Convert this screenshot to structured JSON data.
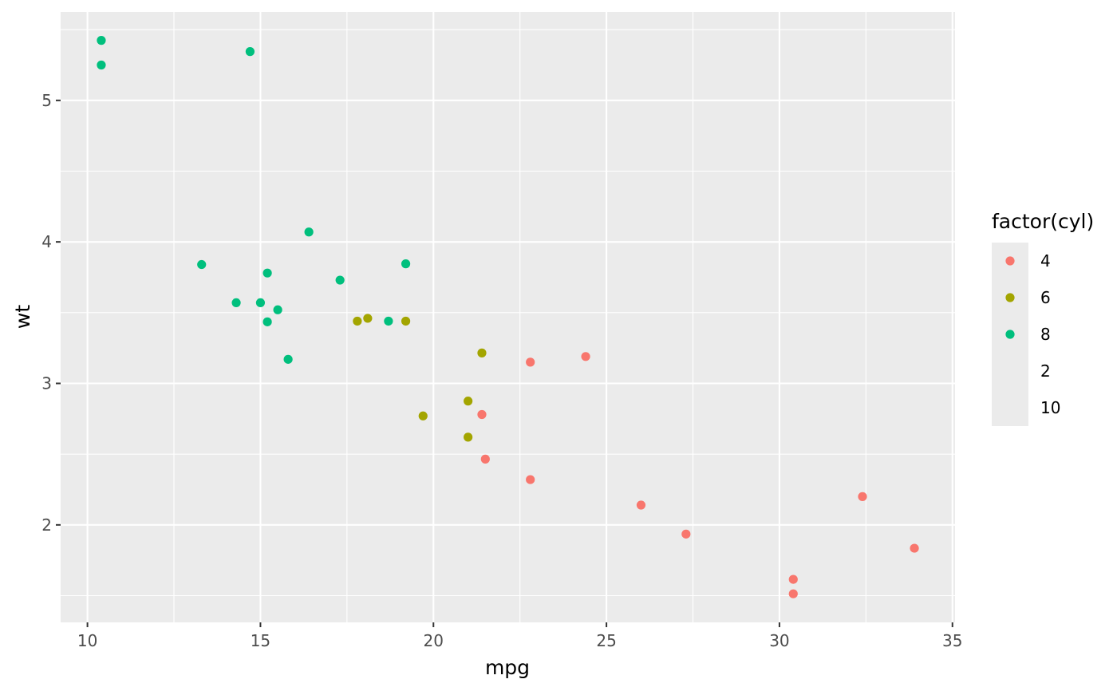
{
  "chart_data": {
    "type": "scatter",
    "title": "",
    "xlabel": "mpg",
    "ylabel": "wt",
    "xlim": [
      9.225,
      35.075
    ],
    "ylim": [
      1.31105,
      5.62495
    ],
    "x_ticks": [
      10,
      15,
      20,
      25,
      30,
      35
    ],
    "y_ticks": [
      2,
      3,
      4,
      5
    ],
    "grid": true,
    "background": "#ebebeb",
    "legend": {
      "title": "factor(cyl)",
      "position": "right",
      "entries": [
        {
          "label": "4",
          "color": "#F8766D",
          "has_point": true
        },
        {
          "label": "6",
          "color": "#A3A500",
          "has_point": true
        },
        {
          "label": "8",
          "color": "#00BF7D",
          "has_point": true
        },
        {
          "label": "2",
          "color": "",
          "has_point": false
        },
        {
          "label": "10",
          "color": "",
          "has_point": false
        }
      ]
    },
    "series": [
      {
        "name": "4",
        "color": "#F8766D",
        "points": [
          [
            22.8,
            2.32
          ],
          [
            24.4,
            3.19
          ],
          [
            22.8,
            3.15
          ],
          [
            32.4,
            2.2
          ],
          [
            30.4,
            1.615
          ],
          [
            33.9,
            1.835
          ],
          [
            21.5,
            2.465
          ],
          [
            27.3,
            1.935
          ],
          [
            26.0,
            2.14
          ],
          [
            30.4,
            1.513
          ],
          [
            21.4,
            2.78
          ]
        ]
      },
      {
        "name": "6",
        "color": "#A3A500",
        "points": [
          [
            21.0,
            2.62
          ],
          [
            21.0,
            2.875
          ],
          [
            21.4,
            3.215
          ],
          [
            18.1,
            3.46
          ],
          [
            19.2,
            3.44
          ],
          [
            17.8,
            3.44
          ],
          [
            19.7,
            2.77
          ]
        ]
      },
      {
        "name": "8",
        "color": "#00BF7D",
        "points": [
          [
            18.7,
            3.44
          ],
          [
            14.3,
            3.57
          ],
          [
            16.4,
            4.07
          ],
          [
            17.3,
            3.73
          ],
          [
            15.2,
            3.78
          ],
          [
            10.4,
            5.25
          ],
          [
            10.4,
            5.424
          ],
          [
            14.7,
            5.345
          ],
          [
            15.5,
            3.52
          ],
          [
            15.2,
            3.435
          ],
          [
            13.3,
            3.84
          ],
          [
            19.2,
            3.845
          ],
          [
            15.8,
            3.17
          ],
          [
            15.0,
            3.57
          ]
        ]
      }
    ]
  }
}
